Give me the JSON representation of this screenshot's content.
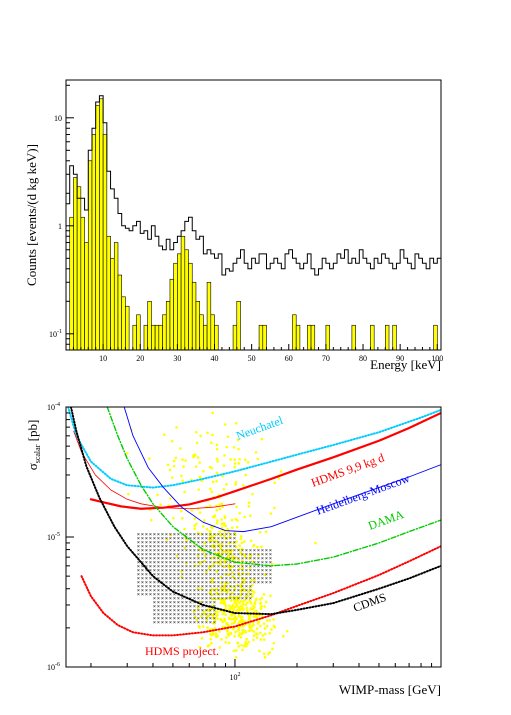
{
  "chart_data": [
    {
      "type": "histogram",
      "xlabel": "Energy [keV]",
      "ylabel": "Counts [events/(d kg keV)]",
      "xlim": [
        0,
        101
      ],
      "ylim_log10": [
        -1.15,
        1.35
      ],
      "x_tick_labels": [
        "10",
        "20",
        "30",
        "40",
        "50",
        "60",
        "70",
        "80",
        "90",
        "100"
      ],
      "x_tick_values": [
        10,
        20,
        30,
        40,
        50,
        60,
        70,
        80,
        90,
        100
      ],
      "y_tick_labels": [
        "10",
        "1",
        "10"
      ],
      "y_tick_exponents": [
        "",
        "",
        "-1"
      ],
      "y_tick_values_log10": [
        1,
        0,
        -1
      ],
      "bin_width_kev": 1,
      "series": [
        {
          "style": "outline",
          "color": "#000000",
          "values": [
            1.6,
            3.6,
            3.0,
            1.8,
            1.8,
            1.4,
            5.0,
            8.0,
            14.0,
            16.0,
            9.0,
            3.2,
            2.2,
            1.8,
            1.3,
            1.0,
            0.95,
            0.9,
            1.0,
            1.1,
            0.85,
            0.9,
            0.75,
            1.0,
            0.8,
            0.65,
            0.6,
            0.75,
            0.6,
            0.7,
            0.8,
            0.9,
            1.1,
            1.2,
            0.9,
            0.75,
            0.8,
            0.55,
            0.6,
            0.55,
            0.5,
            0.55,
            0.35,
            0.4,
            0.38,
            0.45,
            0.5,
            0.6,
            0.45,
            0.4,
            0.5,
            0.45,
            0.55,
            0.55,
            0.4,
            0.45,
            0.5,
            0.45,
            0.4,
            0.55,
            0.6,
            0.5,
            0.45,
            0.4,
            0.45,
            0.55,
            0.4,
            0.35,
            0.4,
            0.5,
            0.45,
            0.4,
            0.45,
            0.55,
            0.5,
            0.6,
            0.45,
            0.5,
            0.45,
            0.6,
            0.5,
            0.45,
            0.4,
            0.5,
            0.45,
            0.55,
            0.5,
            0.45,
            0.4,
            0.45,
            0.6,
            0.5,
            0.45,
            0.4,
            0.55,
            0.5,
            0.45,
            0.4,
            0.5,
            0.45,
            0.5
          ]
        },
        {
          "style": "filled",
          "color": "#ffff00",
          "values": [
            0,
            1.2,
            2.8,
            2.3,
            1.2,
            0.7,
            4.0,
            7.0,
            13.0,
            15.0,
            7.0,
            0.8,
            0.5,
            0.7,
            0.35,
            0.22,
            0.18,
            0,
            0.12,
            0.15,
            0,
            0.12,
            0.2,
            0.12,
            0.12,
            0.12,
            0.15,
            0.2,
            0.32,
            0.45,
            0.55,
            0.8,
            0.6,
            0.45,
            0.3,
            0.2,
            0.15,
            0.12,
            0.3,
            0.15,
            0.12,
            0,
            0,
            0,
            0,
            0.12,
            0.2,
            0,
            0,
            0,
            0,
            0,
            0.12,
            0.12,
            0,
            0,
            0,
            0,
            0,
            0,
            0,
            0.15,
            0.12,
            0,
            0,
            0.12,
            0.12,
            0,
            0,
            0,
            0.12,
            0,
            0,
            0,
            0,
            0,
            0,
            0.12,
            0,
            0,
            0,
            0,
            0.12,
            0,
            0,
            0,
            0.12,
            0,
            0.12,
            0,
            0,
            0,
            0,
            0,
            0,
            0,
            0,
            0,
            0,
            0.12,
            0
          ]
        }
      ]
    },
    {
      "type": "line",
      "xlabel": "WIMP-mass [GeV]",
      "ylabel_main": "σ",
      "ylabel_sub": "scalar",
      "ylabel_units": " [pb]",
      "x_scale": "log",
      "y_scale": "log",
      "xlim_log10": [
        1.18,
        3.0
      ],
      "ylim_log10": [
        -6,
        -4
      ],
      "x_tick_labels": [
        "10"
      ],
      "x_tick_exponents": [
        "2"
      ],
      "x_tick_values_log10": [
        2
      ],
      "y_tick_labels": [
        "10",
        "10",
        "10"
      ],
      "y_tick_exponents": [
        "-4",
        "-5",
        "-6"
      ],
      "y_tick_values_log10": [
        -4,
        -5,
        -6
      ],
      "series": [
        {
          "name": "Neuchatel",
          "color": "#00ccff",
          "style": "dotted",
          "x": [
            15.5,
            17,
            20,
            25,
            30,
            40,
            50,
            70,
            100,
            150,
            200,
            300,
            500,
            800,
            1000
          ],
          "y": [
            0.0001,
            6e-05,
            3.8e-05,
            2.8e-05,
            2.5e-05,
            2.4e-05,
            2.5e-05,
            2.8e-05,
            3.2e-05,
            3.8e-05,
            4.3e-05,
            5.1e-05,
            6.4e-05,
            8.3e-05,
            9.5e-05
          ]
        },
        {
          "name": "HDMS 9,9 kg d",
          "color": "#ff0000",
          "style": "solid-thick",
          "x": [
            20,
            23,
            28,
            35,
            45,
            60,
            80,
            100,
            150,
            200,
            300,
            500,
            700,
            1000
          ],
          "y": [
            1.95e-05,
            1.85e-05,
            1.72e-05,
            1.65e-05,
            1.68e-05,
            1.78e-05,
            2e-05,
            2.25e-05,
            2.8e-05,
            3.3e-05,
            4.1e-05,
            5.5e-05,
            6.9e-05,
            9e-05
          ]
        },
        {
          "name": "",
          "color": "#ff0000",
          "style": "thin",
          "x": [
            16.5,
            18,
            21,
            25,
            30,
            35,
            45,
            60,
            80,
            100
          ],
          "y": [
            6.5e-05,
            4.5e-05,
            3e-05,
            2.3e-05,
            1.95e-05,
            1.8e-05,
            1.68e-05,
            1.65e-05,
            1.7e-05,
            1.8e-05
          ]
        },
        {
          "name": "Heidelberg-Moscow",
          "color": "#0000ff",
          "style": "solid-thin",
          "x": [
            29,
            32,
            38,
            45,
            55,
            70,
            90,
            110,
            150,
            200,
            300,
            500,
            700,
            1000
          ],
          "y": [
            0.0001,
            6e-05,
            3.4e-05,
            2.4e-05,
            1.7e-05,
            1.3e-05,
            1.12e-05,
            1.1e-05,
            1.2e-05,
            1.42e-05,
            1.8e-05,
            2.4e-05,
            2.9e-05,
            3.6e-05
          ]
        },
        {
          "name": "DAMA",
          "color": "#00cc00",
          "style": "dash-dot",
          "x": [
            24,
            27,
            30,
            35,
            40,
            50,
            70,
            100,
            150,
            200,
            300,
            500,
            700,
            1000
          ],
          "y": [
            0.0001,
            6e-05,
            4e-05,
            2.5e-05,
            1.8e-05,
            1.2e-05,
            8e-06,
            6.4e-06,
            6e-06,
            6.2e-06,
            7e-06,
            9e-06,
            1.1e-05,
            1.35e-05
          ]
        },
        {
          "name": "HDMS project.",
          "color": "#ff0000",
          "style": "dotted",
          "x": [
            18,
            20,
            23,
            27,
            32,
            40,
            50,
            70,
            100,
            150,
            200,
            300,
            500,
            700,
            1000
          ],
          "y": [
            5e-06,
            3.5e-06,
            2.6e-06,
            2.1e-06,
            1.85e-06,
            1.75e-06,
            1.75e-06,
            1.85e-06,
            2.05e-06,
            2.5e-06,
            2.95e-06,
            3.7e-06,
            5.1e-06,
            6.5e-06,
            8.5e-06
          ]
        },
        {
          "name": "CDMS",
          "color": "#000000",
          "style": "dotted",
          "x": [
            16,
            17,
            19,
            22,
            26,
            30,
            40,
            50,
            70,
            100,
            150,
            200,
            300,
            500,
            700,
            1000
          ],
          "y": [
            0.0001,
            6.5e-05,
            3.5e-05,
            2e-05,
            1.2e-05,
            8.5e-06,
            5e-06,
            3.8e-06,
            3e-06,
            2.6e-06,
            2.55e-06,
            2.75e-06,
            3.1e-06,
            4e-06,
            4.8e-06,
            6e-06
          ]
        }
      ],
      "dama_region": {
        "color": "#555555",
        "x_range": [
          34,
          150
        ],
        "y_range": [
          2.2e-06,
          1.05e-05
        ]
      },
      "scatter_cloud": {
        "color": "#ffff00",
        "count": 700
      }
    }
  ]
}
